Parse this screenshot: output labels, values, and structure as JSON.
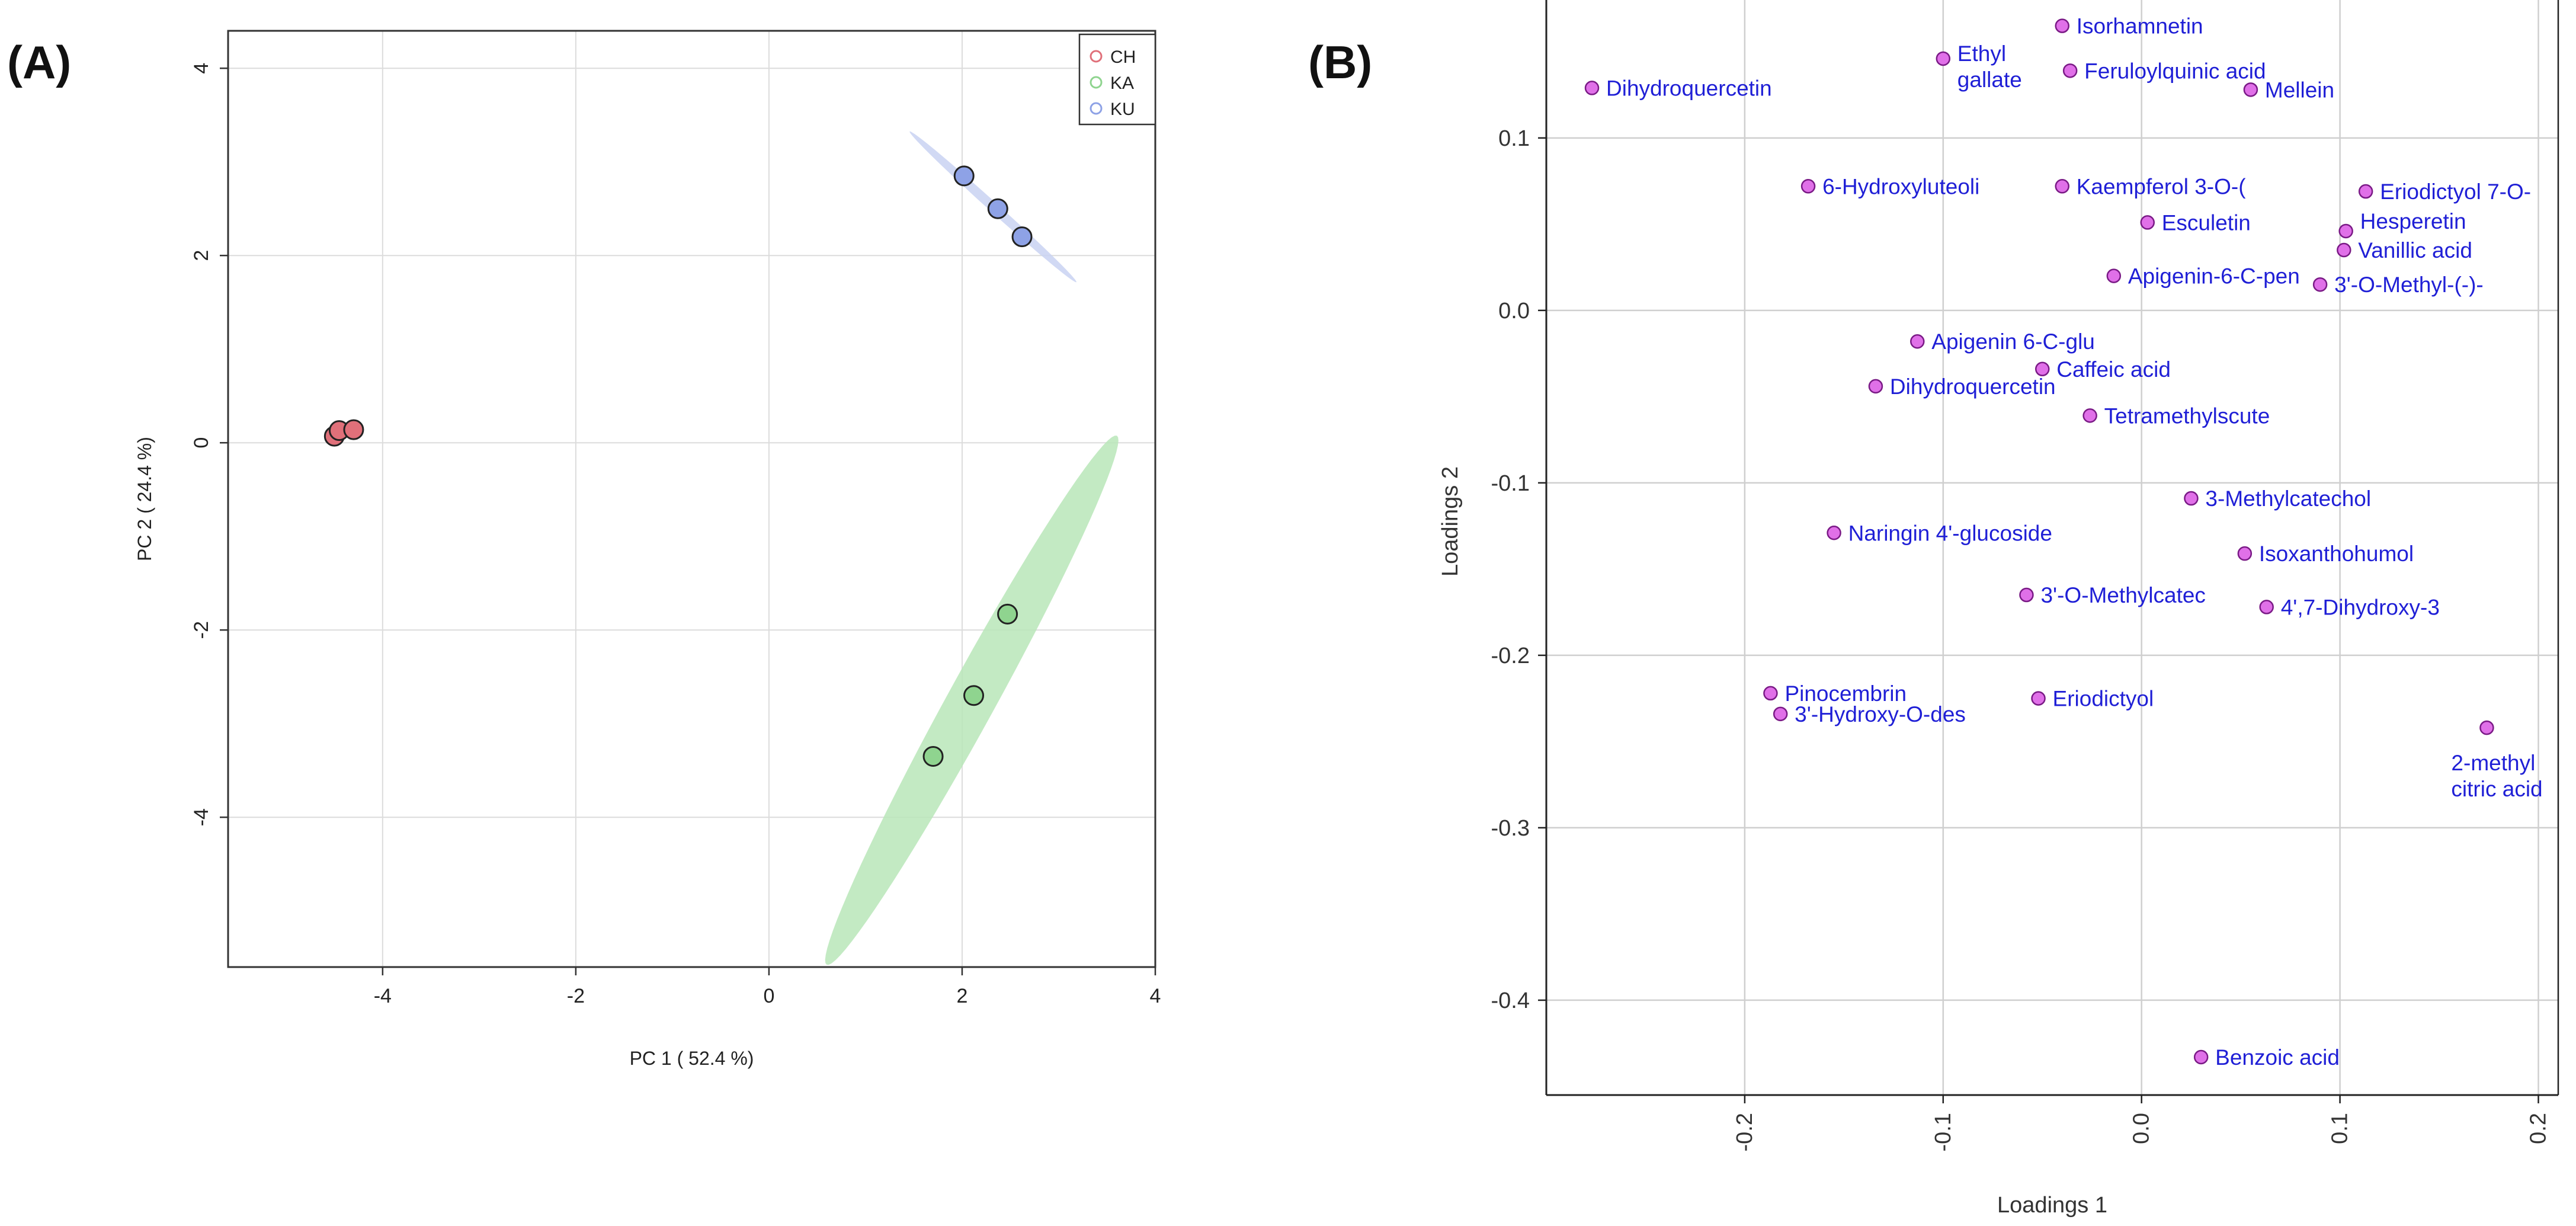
{
  "panel_labels": {
    "a": "(A)",
    "b": "(B)"
  },
  "colors": {
    "CH": "#e0707a",
    "KA": "#8fd48f",
    "KU": "#8ea2e6",
    "ellipse_KA": "#b9e6b9",
    "ellipse_KU": "#c9d2f2",
    "loading_point": "#e070e8",
    "loading_text": "#1f1fd6"
  },
  "chart_data": [
    {
      "type": "scatter",
      "title": "",
      "xlabel": "PC 1 ( 52.4 %)",
      "ylabel": "PC 2 ( 24.4 %)",
      "xlim": [
        -5.6,
        4.0
      ],
      "ylim": [
        -5.6,
        4.4
      ],
      "xticks": [
        -4,
        -2,
        0,
        2,
        4
      ],
      "yticks": [
        -4,
        -2,
        0,
        2,
        4
      ],
      "xtick_labels": [
        "-4",
        "-2",
        "0",
        "2",
        "4"
      ],
      "ytick_labels": [
        "-4",
        "-2",
        "0",
        "2",
        "4"
      ],
      "grid": true,
      "legend_position": "top-right",
      "legend": [
        "CH",
        "KA",
        "KU"
      ],
      "series": [
        {
          "name": "CH",
          "points": [
            [
              -4.5,
              0.07
            ],
            [
              -4.45,
              0.13
            ],
            [
              -4.3,
              0.14
            ]
          ]
        },
        {
          "name": "KA",
          "points": [
            [
              2.47,
              -1.83
            ],
            [
              2.12,
              -2.7
            ],
            [
              1.7,
              -3.35
            ]
          ]
        },
        {
          "name": "KU",
          "points": [
            [
              2.02,
              2.85
            ],
            [
              2.37,
              2.5
            ],
            [
              2.62,
              2.2
            ]
          ]
        }
      ],
      "ellipses": [
        {
          "group": "KA",
          "center": [
            2.1,
            -2.75
          ],
          "semi_major": 3.2,
          "semi_minor": 0.25,
          "angle_deg": 62
        },
        {
          "group": "KU",
          "center": [
            2.32,
            2.52
          ],
          "semi_major": 1.18,
          "semi_minor": 0.05,
          "angle_deg": -43
        }
      ]
    },
    {
      "type": "scatter",
      "title": "",
      "xlabel": "Loadings 1",
      "ylabel": "Loadings 2",
      "xlim": [
        -0.3,
        0.21
      ],
      "ylim": [
        -0.455,
        0.18
      ],
      "xticks": [
        -0.2,
        -0.1,
        0.0,
        0.1,
        0.2
      ],
      "yticks": [
        -0.4,
        -0.3,
        -0.2,
        -0.1,
        0.0,
        0.1
      ],
      "xtick_labels": [
        "-0.2",
        "-0.1",
        "0.0",
        "0.1",
        "0.2"
      ],
      "ytick_labels": [
        "-0.4",
        "-0.3",
        "-0.2",
        "-0.1",
        "0.0",
        "0.1"
      ],
      "grid": true,
      "points": [
        {
          "x": -0.277,
          "y": 0.129,
          "label": [
            "Dihydroquercetin"
          ],
          "pos": "right"
        },
        {
          "x": -0.1,
          "y": 0.146,
          "label": [
            "Ethyl",
            "gallate"
          ],
          "pos": "right-stack"
        },
        {
          "x": -0.04,
          "y": 0.165,
          "label": [
            "Isorhamnetin"
          ],
          "pos": "right"
        },
        {
          "x": -0.036,
          "y": 0.139,
          "label": [
            "Feruloylquinic acid"
          ],
          "pos": "right"
        },
        {
          "x": 0.055,
          "y": 0.128,
          "label": [
            "Mellein"
          ],
          "pos": "right"
        },
        {
          "x": -0.168,
          "y": 0.072,
          "label": [
            "6-Hydroxyluteoli"
          ],
          "pos": "right"
        },
        {
          "x": -0.04,
          "y": 0.072,
          "label": [
            "Kaempferol 3-O-("
          ],
          "pos": "right"
        },
        {
          "x": 0.113,
          "y": 0.069,
          "label": [
            "Eriodictyol 7-O-"
          ],
          "pos": "right"
        },
        {
          "x": 0.003,
          "y": 0.051,
          "label": [
            "Esculetin"
          ],
          "pos": "right"
        },
        {
          "x": 0.103,
          "y": 0.046,
          "label": [
            "Hesperetin"
          ],
          "pos": "right-up"
        },
        {
          "x": 0.102,
          "y": 0.035,
          "label": [
            "Vanillic acid"
          ],
          "pos": "right"
        },
        {
          "x": -0.014,
          "y": 0.02,
          "label": [
            "Apigenin-6-C-pen"
          ],
          "pos": "right"
        },
        {
          "x": 0.09,
          "y": 0.015,
          "label": [
            "3'-O-Methyl-(-)-"
          ],
          "pos": "right"
        },
        {
          "x": -0.113,
          "y": -0.018,
          "label": [
            "Apigenin 6-C-glu"
          ],
          "pos": "right"
        },
        {
          "x": -0.05,
          "y": -0.034,
          "label": [
            "Caffeic acid"
          ],
          "pos": "right"
        },
        {
          "x": -0.134,
          "y": -0.044,
          "label": [
            "Dihydroquercetin"
          ],
          "pos": "right"
        },
        {
          "x": -0.026,
          "y": -0.061,
          "label": [
            "Tetramethylscute"
          ],
          "pos": "right"
        },
        {
          "x": 0.025,
          "y": -0.109,
          "label": [
            "3-Methylcatechol"
          ],
          "pos": "right"
        },
        {
          "x": -0.155,
          "y": -0.129,
          "label": [
            "Naringin 4'-glucoside"
          ],
          "pos": "right"
        },
        {
          "x": 0.052,
          "y": -0.141,
          "label": [
            "Isoxanthohumol"
          ],
          "pos": "right"
        },
        {
          "x": -0.058,
          "y": -0.165,
          "label": [
            "3'-O-Methylcatec"
          ],
          "pos": "right"
        },
        {
          "x": 0.063,
          "y": -0.172,
          "label": [
            "4',7-Dihydroxy-3"
          ],
          "pos": "right"
        },
        {
          "x": -0.187,
          "y": -0.222,
          "label": [
            "Pinocembrin"
          ],
          "pos": "right"
        },
        {
          "x": -0.182,
          "y": -0.234,
          "label": [
            "3'-Hydroxy-O-des"
          ],
          "pos": "right"
        },
        {
          "x": -0.052,
          "y": -0.225,
          "label": [
            "Eriodictyol"
          ],
          "pos": "right"
        },
        {
          "x": 0.174,
          "y": -0.242,
          "label": [
            "2-methyl",
            "citric acid"
          ],
          "pos": "below-stack"
        },
        {
          "x": 0.03,
          "y": -0.433,
          "label": [
            "Benzoic acid"
          ],
          "pos": "right"
        }
      ]
    }
  ]
}
